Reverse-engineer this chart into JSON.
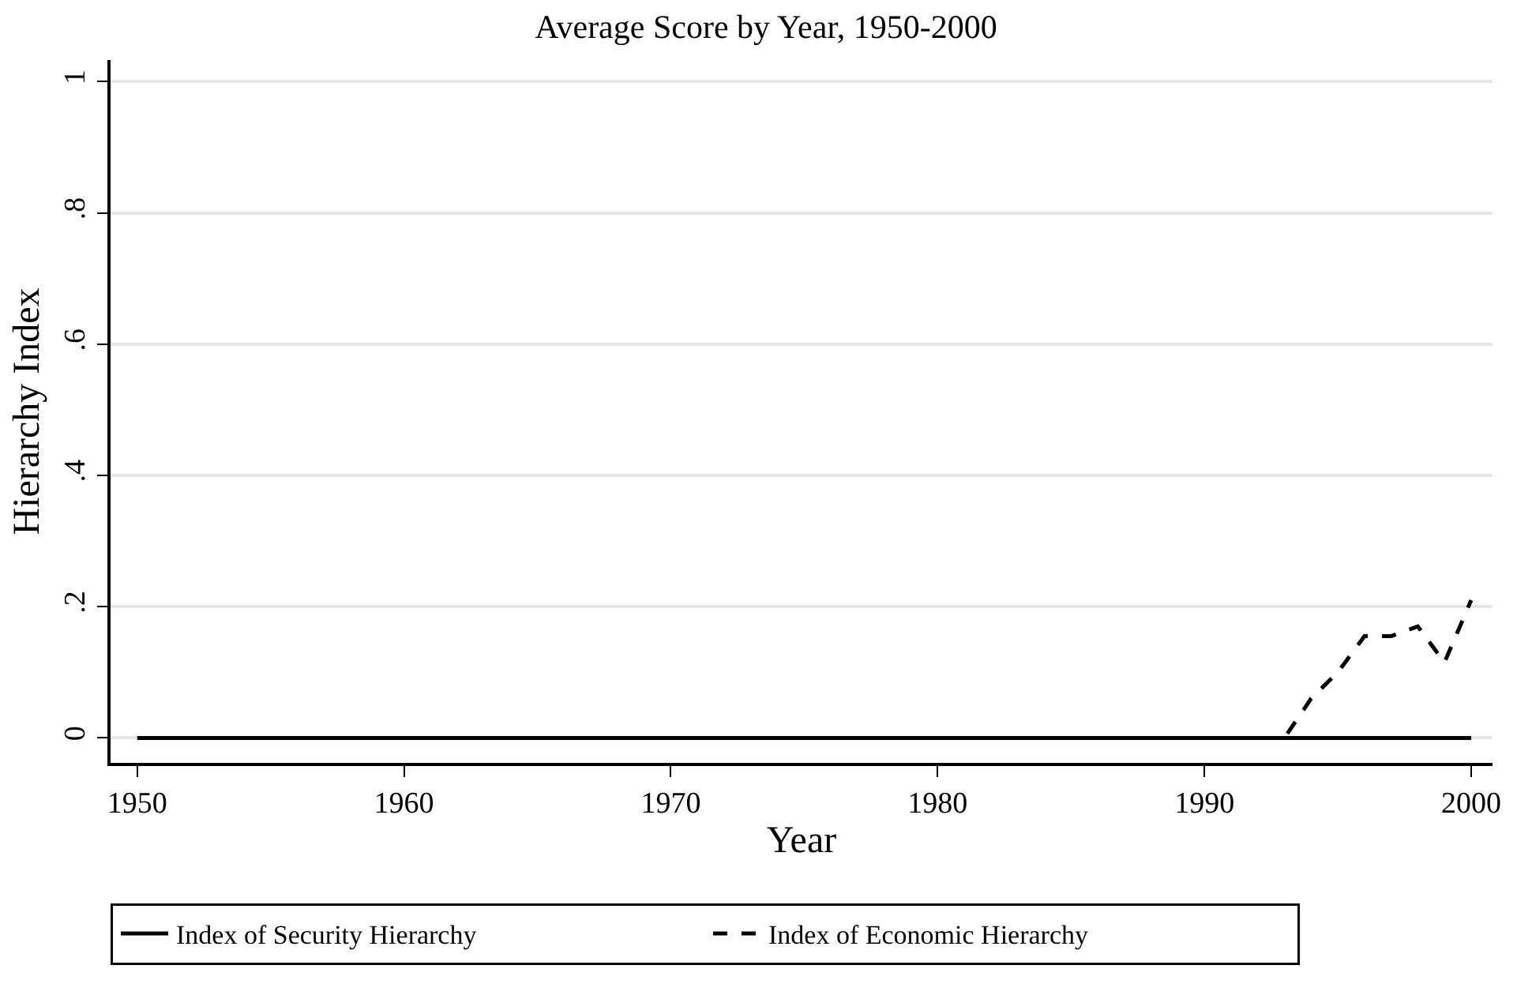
{
  "chart_data": {
    "type": "line",
    "title": "Average Score by Year, 1950-2000",
    "xlabel": "Year",
    "ylabel": "Hierarchy Index",
    "xlim": [
      1949,
      2000.8
    ],
    "xticks": [
      1950,
      1960,
      1970,
      1980,
      1990,
      2000
    ],
    "ylim": [
      -0.038,
      1.033
    ],
    "yticks": [
      {
        "value": 0,
        "label": "0"
      },
      {
        "value": 0.2,
        "label": ".2"
      },
      {
        "value": 0.4,
        "label": ".4"
      },
      {
        "value": 0.6,
        "label": ".6"
      },
      {
        "value": 0.8,
        "label": ".8"
      },
      {
        "value": 1,
        "label": "1"
      }
    ],
    "grid": "y",
    "legend": "bottom",
    "marker": "none",
    "series": [
      {
        "name": "Index of Security Hierarchy",
        "color": "#000000",
        "line_style": "solid",
        "x": [
          1950,
          1960,
          1970,
          1980,
          1990,
          2000
        ],
        "values": [
          0,
          0,
          0,
          0,
          0,
          0
        ]
      },
      {
        "name": "Index of Economic Hierarchy",
        "color": "#000000",
        "line_style": "dashed",
        "x": [
          1990,
          1991,
          1992,
          1993,
          1994,
          1995,
          1996,
          1997,
          1998,
          1999,
          2000
        ],
        "values": [
          0,
          0,
          0,
          0,
          0.06,
          0.1,
          0.155,
          0.155,
          0.17,
          0.115,
          0.21
        ]
      }
    ]
  }
}
